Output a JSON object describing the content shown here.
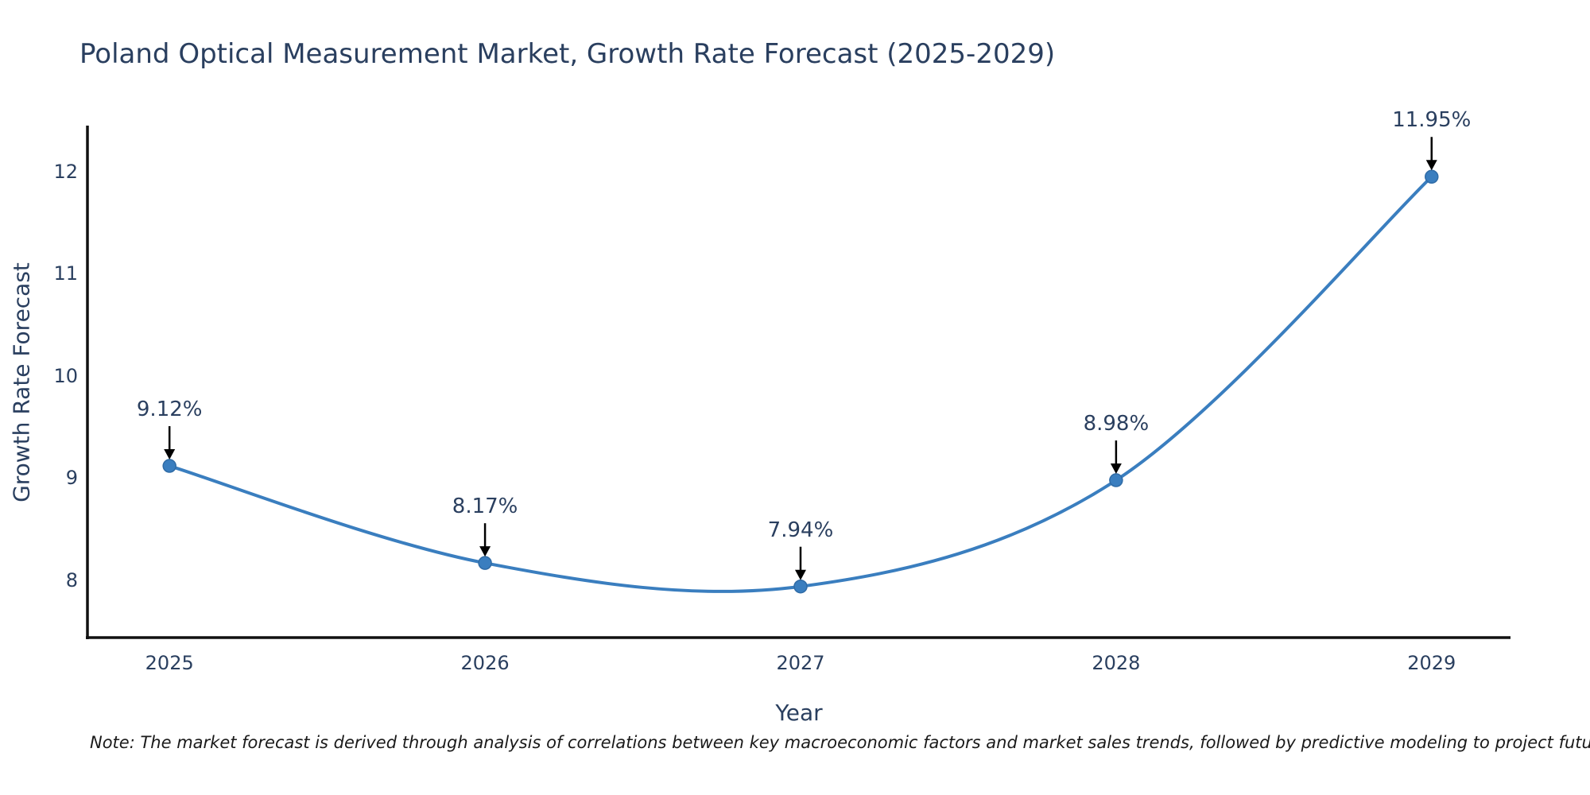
{
  "page": {
    "note": "Note: The market forecast is derived through analysis of correlations between key macroeconomic factors and market sales trends, followed by predictive modeling to project future sales"
  },
  "chart_data": {
    "type": "line",
    "title": "Poland Optical Measurement Market, Growth Rate Forecast (2025-2029)",
    "xlabel": "Year",
    "ylabel": "Growth Rate Forecast",
    "x": [
      2025,
      2026,
      2027,
      2028,
      2029
    ],
    "values": [
      9.12,
      8.17,
      7.94,
      8.98,
      11.95
    ],
    "point_labels": [
      "9.12%",
      "8.17%",
      "7.94%",
      "8.98%",
      "11.95%"
    ],
    "x_ticks": [
      "2025",
      "2026",
      "2027",
      "2028",
      "2029"
    ],
    "y_ticks": [
      8,
      9,
      10,
      11,
      12
    ],
    "xlim": [
      2024.74,
      2029.25
    ],
    "ylim": [
      7.44,
      12.45
    ],
    "line_shape": "spline",
    "grid": false,
    "legend_position": "none",
    "colors": {
      "line": "#3a7ebf",
      "marker": "#3a7ebf",
      "marker_edge": "#2f6ba6",
      "axis_line": "#111111",
      "text": "#2a3f5f",
      "arrow": "#000000",
      "note_text": "#1a1a1a",
      "background": "#ffffff"
    }
  }
}
